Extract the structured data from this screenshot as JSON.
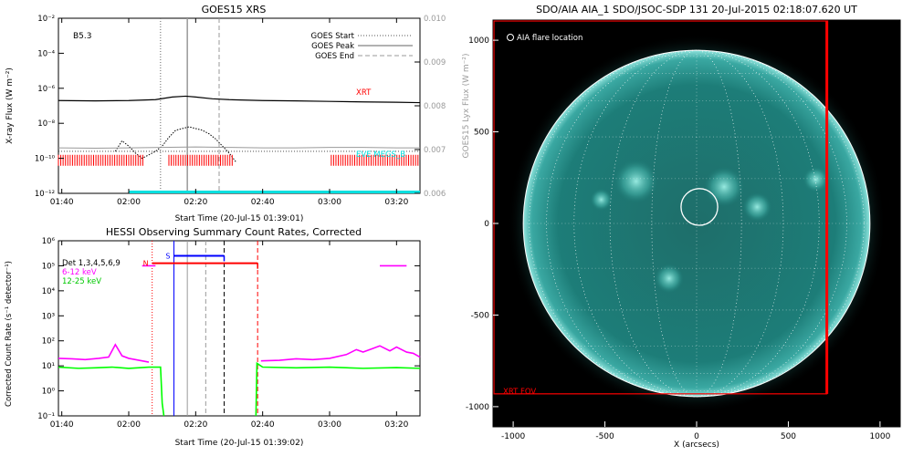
{
  "colors": {
    "xrt_label": "#ff0000",
    "eve_label": "#00e5e5",
    "goes_right_axis": "#9a9a9a",
    "hessi_6_12": "#ff00ff",
    "hessi_12_25": "#00ff00",
    "flag_red": "#ff0000",
    "flag_blue": "#0000ff",
    "aia_disk": "#1d7d78",
    "aia_bg": "#000000"
  },
  "chart_data": [
    {
      "type": "line",
      "title": "GOES15 XRS",
      "class_label": "B5.3",
      "xlabel": "Start Time (20-Jul-15 01:39:01)",
      "ylabel": "X-ray Flux (W m⁻²)",
      "ylabel_right": "GOES15 Lyx Flux (W m⁻²)",
      "x_ticks": [
        "01:40",
        "02:00",
        "02:20",
        "02:40",
        "03:00",
        "03:20"
      ],
      "x_tick_minutes": [
        100,
        120,
        140,
        160,
        180,
        200
      ],
      "xlim_minutes": [
        99,
        207
      ],
      "y_ticks": [
        "10⁻²",
        "10⁻⁴",
        "10⁻⁶",
        "10⁻⁸",
        "10⁻¹⁰",
        "10⁻¹²"
      ],
      "y_tick_exponents": [
        -2,
        -4,
        -6,
        -8,
        -10,
        -12
      ],
      "ylim_log10": [
        -12,
        -2
      ],
      "y2_ticks": [
        "0.010",
        "0.009",
        "0.008",
        "0.007",
        "0.006"
      ],
      "y2_tick_values": [
        0.01,
        0.009,
        0.008,
        0.007,
        0.006
      ],
      "y2lim": [
        0.006,
        0.01
      ],
      "legend": [
        {
          "label": "GOES Start",
          "style": "dotted"
        },
        {
          "label": "GOES Peak",
          "style": "solid"
        },
        {
          "label": "GOES End",
          "style": "dashed"
        }
      ],
      "legend_position": "top-right",
      "event_lines_minutes": {
        "start": 129.5,
        "peak": 137.5,
        "end": 147.0
      },
      "series": [
        {
          "name": "",
          "color": "#000000",
          "x_minutes": [
            99,
            110,
            120,
            128,
            133,
            137,
            140,
            145,
            150,
            160,
            170,
            180,
            190,
            200,
            207
          ],
          "log10_values": [
            -6.7,
            -6.72,
            -6.7,
            -6.65,
            -6.5,
            -6.45,
            -6.5,
            -6.6,
            -6.65,
            -6.7,
            -6.72,
            -6.75,
            -6.78,
            -6.8,
            -6.82
          ]
        },
        {
          "name": "",
          "color": "#000000",
          "x_minutes": [
            116,
            118,
            120,
            122,
            124,
            126,
            128,
            130,
            132,
            134,
            136,
            138,
            140,
            142,
            144,
            146,
            148,
            150,
            152
          ],
          "log10_values": [
            -9.6,
            -9.0,
            -9.3,
            -9.7,
            -10.0,
            -9.8,
            -9.6,
            -9.3,
            -8.8,
            -8.4,
            -8.3,
            -8.2,
            -8.3,
            -8.4,
            -8.6,
            -8.9,
            -9.3,
            -9.7,
            -10.2
          ]
        },
        {
          "name": "",
          "color": "#9a9a9a",
          "axis": "right",
          "x_minutes": [
            99,
            110,
            120,
            130,
            140,
            150,
            160,
            170,
            180,
            190,
            200,
            207
          ],
          "values": [
            0.00704,
            0.00703,
            0.00704,
            0.00705,
            0.00706,
            0.00705,
            0.00704,
            0.00704,
            0.00705,
            0.00705,
            0.00704,
            0.00704
          ]
        }
      ],
      "dotted_level_log10": -9.6,
      "xrt_label": "XRT",
      "xrt_coverage_minutes": [
        [
          99,
          124.5
        ],
        [
          132,
          151.5
        ],
        [
          180.5,
          207
        ]
      ],
      "eve_label": "EVE MEGS_B",
      "eve_coverage_minutes": [
        [
          120,
          207
        ]
      ]
    },
    {
      "type": "line",
      "title": "HESSI Observing Summary Count Rates, Corrected",
      "xlabel": "Start Time (20-Jul-15 01:39:02)",
      "ylabel": "Corrected Count Rate (s⁻¹ detector⁻¹)",
      "x_ticks": [
        "01:40",
        "02:00",
        "02:20",
        "02:40",
        "03:00",
        "03:20"
      ],
      "x_tick_minutes": [
        100,
        120,
        140,
        160,
        180,
        200
      ],
      "xlim_minutes": [
        99,
        207
      ],
      "y_ticks": [
        "10⁶",
        "10⁵",
        "10⁴",
        "10³",
        "10²",
        "10¹",
        "10⁰",
        "10⁻¹"
      ],
      "y_tick_exponents": [
        6,
        5,
        4,
        3,
        2,
        1,
        0,
        -1
      ],
      "ylim_log10": [
        -1,
        6
      ],
      "legend": [
        {
          "label": "Det 1,3,4,5,6,9",
          "color": "#000000"
        },
        {
          "label": "6-12 keV",
          "color": "#ff00ff"
        },
        {
          "label": "12-25 keV",
          "color": "#00ff00"
        }
      ],
      "legend_position": "top-left",
      "flags": [
        {
          "label": "N",
          "color": "#ff0000",
          "minutes": [
            127,
            158.5
          ],
          "log10": 5.1
        },
        {
          "label": "S",
          "color": "#0000ff",
          "minutes": [
            133.5,
            148.5
          ],
          "log10": 5.4
        }
      ],
      "vertical_lines": [
        {
          "minutes": 127,
          "color": "#ff0000",
          "style": "dotted"
        },
        {
          "minutes": 133.5,
          "color": "#0000ff",
          "style": "solid"
        },
        {
          "minutes": 137.5,
          "color": "#9a9a9a",
          "style": "solid"
        },
        {
          "minutes": 143,
          "color": "#9a9a9a",
          "style": "dashed"
        },
        {
          "minutes": 148.5,
          "color": "#000000",
          "style": "dashed"
        },
        {
          "minutes": 158.5,
          "color": "#ff0000",
          "style": "dashed"
        }
      ],
      "series": [
        {
          "name": "6-12 keV",
          "color": "#ff00ff",
          "segments": [
            {
              "x_minutes": [
                99,
                103,
                107,
                111,
                114,
                116,
                118,
                120,
                122,
                124,
                126
              ],
              "log10_values": [
                1.3,
                1.28,
                1.25,
                1.3,
                1.35,
                1.85,
                1.4,
                1.3,
                1.25,
                1.2,
                1.15
              ]
            },
            {
              "x_minutes": [
                159.5,
                165,
                170,
                175,
                180,
                185,
                188,
                190,
                193,
                195,
                198,
                200,
                203,
                205,
                207
              ],
              "log10_values": [
                1.2,
                1.22,
                1.28,
                1.25,
                1.3,
                1.45,
                1.65,
                1.55,
                1.7,
                1.8,
                1.6,
                1.75,
                1.55,
                1.5,
                1.35
              ]
            },
            {
              "x_minutes": [
                195,
                203
              ],
              "log10_values": [
                5.0,
                5.0
              ]
            },
            {
              "x_minutes": [
                124,
                128
              ],
              "log10_values": [
                5.0,
                5.0
              ]
            }
          ]
        },
        {
          "name": "12-25 keV",
          "color": "#00ff00",
          "segments": [
            {
              "x_minutes": [
                99,
                105,
                110,
                115,
                120,
                126,
                129.5,
                130,
                130.5
              ],
              "log10_values": [
                0.95,
                0.9,
                0.92,
                0.95,
                0.9,
                0.95,
                0.95,
                -0.5,
                -1
              ]
            },
            {
              "x_minutes": [
                158,
                158.3,
                160,
                170,
                180,
                190,
                200,
                207
              ],
              "log10_values": [
                -1,
                1.1,
                0.95,
                0.92,
                0.95,
                0.9,
                0.93,
                0.9
              ]
            }
          ]
        }
      ]
    },
    {
      "type": "image",
      "title": "SDO/AIA AIA_1 SDO/JSOC-SDP 131 20-Jul-2015 02:18:07.620 UT",
      "xlabel": "X (arcsecs)",
      "x_ticks": [
        "-1000",
        "-500",
        "0",
        "500",
        "1000"
      ],
      "x_tick_values": [
        -1000,
        -500,
        0,
        500,
        1000
      ],
      "y_ticks": [
        "1000",
        "500",
        "0",
        "-500",
        "-1000"
      ],
      "y_tick_values": [
        1000,
        500,
        0,
        -500,
        -1000
      ],
      "xlim": [
        -1110,
        1110
      ],
      "ylim": [
        -1110,
        1110
      ],
      "solar_radius": 945,
      "flare_location_label": "AIA flare location",
      "flare_location": {
        "x": 15,
        "y": 90,
        "r": 100
      },
      "fov_label": "XRT FOV",
      "xrt_fov": {
        "x0": -1110,
        "x1": 710,
        "y0": -930,
        "y1": 1110
      },
      "bright_regions": [
        {
          "x": -330,
          "y": 230,
          "r": 120
        },
        {
          "x": 150,
          "y": 200,
          "r": 110
        },
        {
          "x": 330,
          "y": 90,
          "r": 80
        },
        {
          "x": -520,
          "y": 130,
          "r": 60
        },
        {
          "x": 650,
          "y": 240,
          "r": 70
        },
        {
          "x": -150,
          "y": -300,
          "r": 80
        }
      ]
    }
  ]
}
